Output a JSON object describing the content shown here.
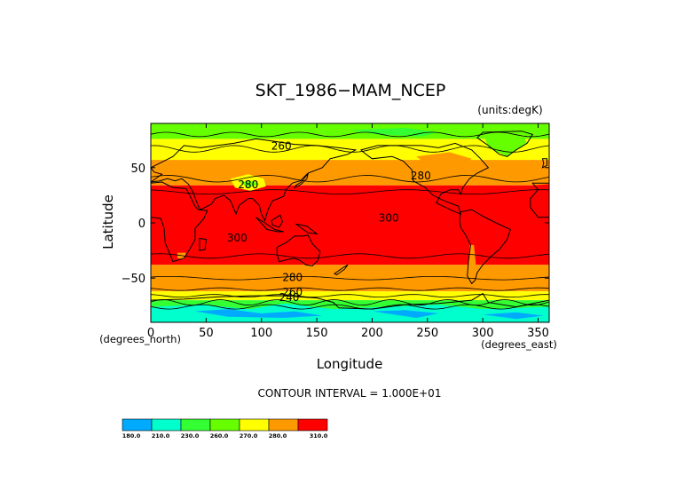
{
  "chart_data": {
    "type": "heatmap",
    "title": "SKT_1986−MAM_NCEP",
    "units_label": "(units:degK)",
    "xlabel": "Longitude",
    "ylabel": "Latitude",
    "x_unit_label": "(degrees_east)",
    "y_unit_label": "(degrees_north)",
    "xlim": [
      0,
      360
    ],
    "ylim": [
      -90,
      90
    ],
    "x_ticks": [
      0,
      50,
      100,
      150,
      200,
      250,
      300,
      350
    ],
    "x_tick_labels": [
      "0",
      "50",
      "100",
      "150",
      "200",
      "250",
      "300",
      "350"
    ],
    "y_ticks": [
      50,
      0,
      -50
    ],
    "y_tick_labels": [
      "50",
      "0",
      "−50"
    ],
    "contour_interval_text": "CONTOUR INTERVAL = 1.000E+01",
    "contour_labels": [
      {
        "text": "260",
        "lon": 118,
        "lat": 67
      },
      {
        "text": "280",
        "lon": 88,
        "lat": 32
      },
      {
        "text": "280",
        "lon": 244,
        "lat": 40
      },
      {
        "text": "300",
        "lon": 215,
        "lat": 2
      },
      {
        "text": "300",
        "lon": 78,
        "lat": -16
      },
      {
        "text": "280",
        "lon": 128,
        "lat": -52
      },
      {
        "text": "260",
        "lon": 128,
        "lat": -65
      },
      {
        "text": "240",
        "lon": 125,
        "lat": -70
      }
    ],
    "color_bands": [
      {
        "name": "gt_300",
        "color": "#ff0000",
        "lat_from": -38,
        "lat_to": 34
      },
      {
        "name": "290_300_north",
        "color": "#ff9900",
        "lat_from": 34,
        "lat_to": 57
      },
      {
        "name": "270_280_north",
        "color": "#ffff00",
        "lat_from": 57,
        "lat_to": 76
      },
      {
        "name": "260_270_north",
        "color": "#66ff00",
        "lat_from": 76,
        "lat_to": 90
      },
      {
        "name": "290_300_south",
        "color": "#ff9900",
        "lat_from": -62,
        "lat_to": -38
      },
      {
        "name": "270_280_south",
        "color": "#ffff00",
        "lat_from": -70,
        "lat_to": -62
      },
      {
        "name": "250_260_south",
        "color": "#33ff33",
        "lat_from": -78,
        "lat_to": -70
      },
      {
        "name": "lt_250_south",
        "color": "#00ffcc",
        "lat_from": -90,
        "lat_to": -78
      }
    ],
    "colorbar": {
      "levels": [
        "180.0",
        "210.0",
        "230.0",
        "260.0",
        "270.0",
        "280.0",
        "310.0"
      ],
      "colors": [
        "#00aaff",
        "#00ffcc",
        "#33ff33",
        "#66ff00",
        "#ffff00",
        "#ff9900",
        "#ff0000"
      ]
    }
  }
}
